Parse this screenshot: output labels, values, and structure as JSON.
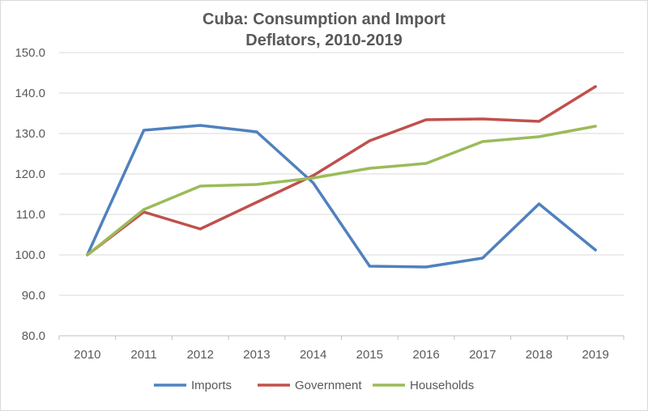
{
  "chart_data": {
    "type": "line",
    "title_lines": [
      "Cuba: Consumption and Import",
      "Deflators, 2010-2019"
    ],
    "xlabel": "",
    "ylabel": "",
    "categories": [
      "2010",
      "2011",
      "2012",
      "2013",
      "2014",
      "2015",
      "2016",
      "2017",
      "2018",
      "2019"
    ],
    "ylim": [
      80,
      150
    ],
    "yticks": [
      "80.0",
      "90.0",
      "100.0",
      "110.0",
      "120.0",
      "130.0",
      "140.0",
      "150.0"
    ],
    "grid": true,
    "legend_position": "bottom",
    "series": [
      {
        "name": "Imports",
        "color": "#4F81BD",
        "values": [
          100.0,
          130.8,
          132.0,
          130.4,
          117.8,
          97.2,
          97.0,
          99.2,
          112.6,
          101.2
        ]
      },
      {
        "name": "Government",
        "color": "#C0504D",
        "values": [
          100.0,
          110.6,
          106.4,
          113.0,
          119.6,
          128.2,
          133.4,
          133.6,
          133.0,
          141.6
        ]
      },
      {
        "name": "Households",
        "color": "#9BBB59",
        "values": [
          100.0,
          111.2,
          117.0,
          117.4,
          119.0,
          121.4,
          122.6,
          128.0,
          129.2,
          131.8
        ]
      }
    ]
  }
}
